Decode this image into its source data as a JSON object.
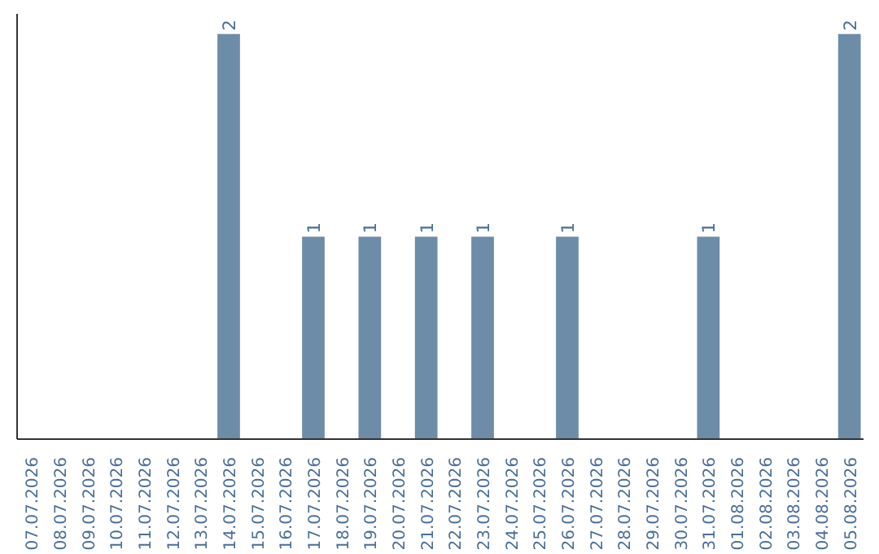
{
  "chart_data": {
    "type": "bar",
    "categories": [
      "07.07.2026",
      "08.07.2026",
      "09.07.2026",
      "10.07.2026",
      "11.07.2026",
      "12.07.2026",
      "13.07.2026",
      "14.07.2026",
      "15.07.2026",
      "16.07.2026",
      "17.07.2026",
      "18.07.2026",
      "19.07.2026",
      "20.07.2026",
      "21.07.2026",
      "22.07.2026",
      "23.07.2026",
      "24.07.2026",
      "25.07.2026",
      "26.07.2026",
      "27.07.2026",
      "28.07.2026",
      "29.07.2026",
      "30.07.2026",
      "31.07.2026",
      "01.08.2026",
      "02.08.2026",
      "03.08.2026",
      "04.08.2026",
      "05.08.2026"
    ],
    "values": [
      0,
      0,
      0,
      0,
      0,
      0,
      0,
      2,
      0,
      0,
      1,
      0,
      1,
      0,
      1,
      0,
      1,
      0,
      0,
      1,
      0,
      0,
      0,
      0,
      1,
      0,
      0,
      0,
      0,
      2
    ],
    "value_labels": [
      null,
      null,
      null,
      null,
      null,
      null,
      null,
      "2",
      null,
      null,
      "1",
      null,
      "1",
      null,
      "1",
      null,
      "1",
      null,
      null,
      "1",
      null,
      null,
      null,
      null,
      "1",
      null,
      null,
      null,
      null,
      "2"
    ],
    "color": "#6d8ca8",
    "tick_labels": "x"
  }
}
